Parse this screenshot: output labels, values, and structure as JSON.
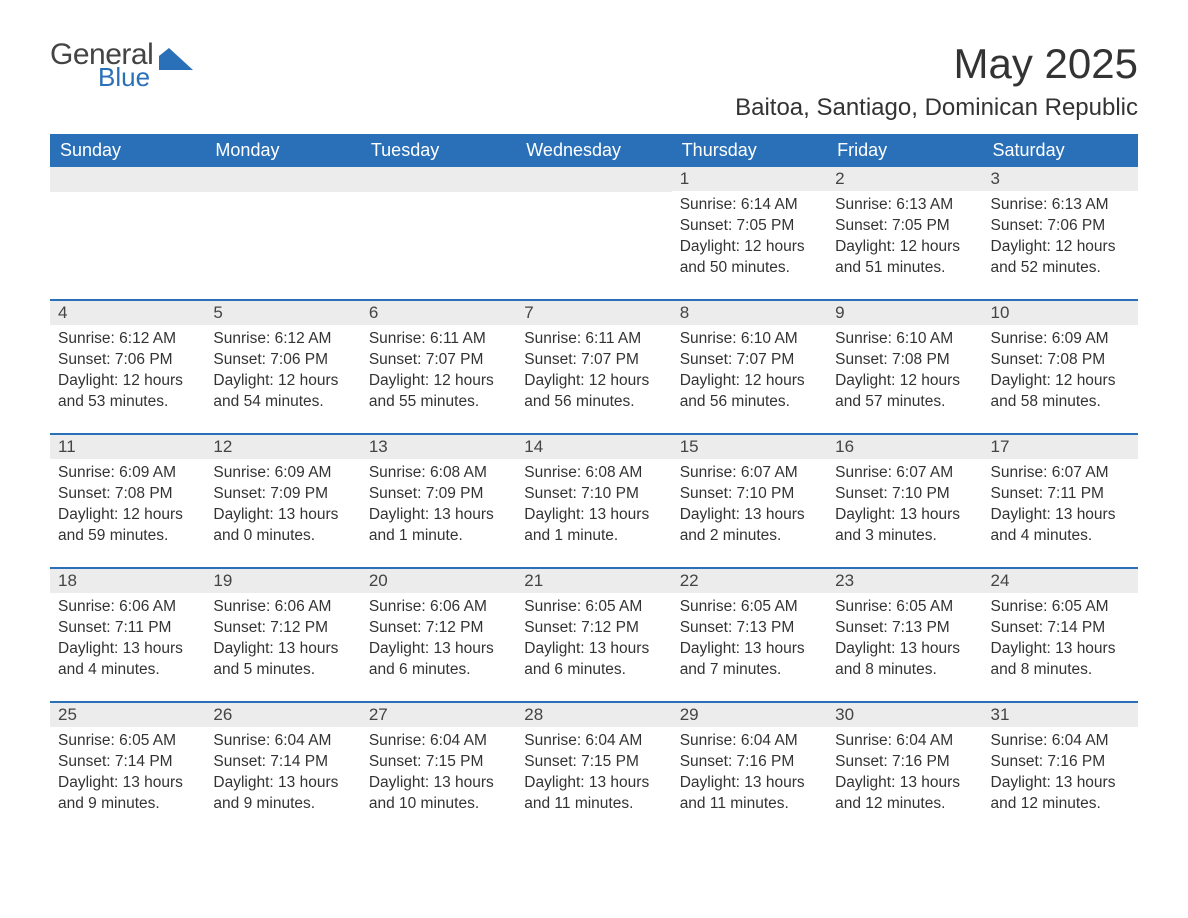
{
  "logo": {
    "general": "General",
    "blue": "Blue"
  },
  "title": "May 2025",
  "location": "Baitoa, Santiago, Dominican Republic",
  "colors": {
    "accent": "#2a70b8",
    "header_text": "#ffffff",
    "daybar_bg": "#ececec",
    "text": "#333333",
    "bg": "#ffffff"
  },
  "weekdays": [
    "Sunday",
    "Monday",
    "Tuesday",
    "Wednesday",
    "Thursday",
    "Friday",
    "Saturday"
  ],
  "weeks": [
    [
      {
        "day": "",
        "sunrise": "",
        "sunset": "",
        "daylight": ""
      },
      {
        "day": "",
        "sunrise": "",
        "sunset": "",
        "daylight": ""
      },
      {
        "day": "",
        "sunrise": "",
        "sunset": "",
        "daylight": ""
      },
      {
        "day": "",
        "sunrise": "",
        "sunset": "",
        "daylight": ""
      },
      {
        "day": "1",
        "sunrise": "Sunrise: 6:14 AM",
        "sunset": "Sunset: 7:05 PM",
        "daylight": "Daylight: 12 hours and 50 minutes."
      },
      {
        "day": "2",
        "sunrise": "Sunrise: 6:13 AM",
        "sunset": "Sunset: 7:05 PM",
        "daylight": "Daylight: 12 hours and 51 minutes."
      },
      {
        "day": "3",
        "sunrise": "Sunrise: 6:13 AM",
        "sunset": "Sunset: 7:06 PM",
        "daylight": "Daylight: 12 hours and 52 minutes."
      }
    ],
    [
      {
        "day": "4",
        "sunrise": "Sunrise: 6:12 AM",
        "sunset": "Sunset: 7:06 PM",
        "daylight": "Daylight: 12 hours and 53 minutes."
      },
      {
        "day": "5",
        "sunrise": "Sunrise: 6:12 AM",
        "sunset": "Sunset: 7:06 PM",
        "daylight": "Daylight: 12 hours and 54 minutes."
      },
      {
        "day": "6",
        "sunrise": "Sunrise: 6:11 AM",
        "sunset": "Sunset: 7:07 PM",
        "daylight": "Daylight: 12 hours and 55 minutes."
      },
      {
        "day": "7",
        "sunrise": "Sunrise: 6:11 AM",
        "sunset": "Sunset: 7:07 PM",
        "daylight": "Daylight: 12 hours and 56 minutes."
      },
      {
        "day": "8",
        "sunrise": "Sunrise: 6:10 AM",
        "sunset": "Sunset: 7:07 PM",
        "daylight": "Daylight: 12 hours and 56 minutes."
      },
      {
        "day": "9",
        "sunrise": "Sunrise: 6:10 AM",
        "sunset": "Sunset: 7:08 PM",
        "daylight": "Daylight: 12 hours and 57 minutes."
      },
      {
        "day": "10",
        "sunrise": "Sunrise: 6:09 AM",
        "sunset": "Sunset: 7:08 PM",
        "daylight": "Daylight: 12 hours and 58 minutes."
      }
    ],
    [
      {
        "day": "11",
        "sunrise": "Sunrise: 6:09 AM",
        "sunset": "Sunset: 7:08 PM",
        "daylight": "Daylight: 12 hours and 59 minutes."
      },
      {
        "day": "12",
        "sunrise": "Sunrise: 6:09 AM",
        "sunset": "Sunset: 7:09 PM",
        "daylight": "Daylight: 13 hours and 0 minutes."
      },
      {
        "day": "13",
        "sunrise": "Sunrise: 6:08 AM",
        "sunset": "Sunset: 7:09 PM",
        "daylight": "Daylight: 13 hours and 1 minute."
      },
      {
        "day": "14",
        "sunrise": "Sunrise: 6:08 AM",
        "sunset": "Sunset: 7:10 PM",
        "daylight": "Daylight: 13 hours and 1 minute."
      },
      {
        "day": "15",
        "sunrise": "Sunrise: 6:07 AM",
        "sunset": "Sunset: 7:10 PM",
        "daylight": "Daylight: 13 hours and 2 minutes."
      },
      {
        "day": "16",
        "sunrise": "Sunrise: 6:07 AM",
        "sunset": "Sunset: 7:10 PM",
        "daylight": "Daylight: 13 hours and 3 minutes."
      },
      {
        "day": "17",
        "sunrise": "Sunrise: 6:07 AM",
        "sunset": "Sunset: 7:11 PM",
        "daylight": "Daylight: 13 hours and 4 minutes."
      }
    ],
    [
      {
        "day": "18",
        "sunrise": "Sunrise: 6:06 AM",
        "sunset": "Sunset: 7:11 PM",
        "daylight": "Daylight: 13 hours and 4 minutes."
      },
      {
        "day": "19",
        "sunrise": "Sunrise: 6:06 AM",
        "sunset": "Sunset: 7:12 PM",
        "daylight": "Daylight: 13 hours and 5 minutes."
      },
      {
        "day": "20",
        "sunrise": "Sunrise: 6:06 AM",
        "sunset": "Sunset: 7:12 PM",
        "daylight": "Daylight: 13 hours and 6 minutes."
      },
      {
        "day": "21",
        "sunrise": "Sunrise: 6:05 AM",
        "sunset": "Sunset: 7:12 PM",
        "daylight": "Daylight: 13 hours and 6 minutes."
      },
      {
        "day": "22",
        "sunrise": "Sunrise: 6:05 AM",
        "sunset": "Sunset: 7:13 PM",
        "daylight": "Daylight: 13 hours and 7 minutes."
      },
      {
        "day": "23",
        "sunrise": "Sunrise: 6:05 AM",
        "sunset": "Sunset: 7:13 PM",
        "daylight": "Daylight: 13 hours and 8 minutes."
      },
      {
        "day": "24",
        "sunrise": "Sunrise: 6:05 AM",
        "sunset": "Sunset: 7:14 PM",
        "daylight": "Daylight: 13 hours and 8 minutes."
      }
    ],
    [
      {
        "day": "25",
        "sunrise": "Sunrise: 6:05 AM",
        "sunset": "Sunset: 7:14 PM",
        "daylight": "Daylight: 13 hours and 9 minutes."
      },
      {
        "day": "26",
        "sunrise": "Sunrise: 6:04 AM",
        "sunset": "Sunset: 7:14 PM",
        "daylight": "Daylight: 13 hours and 9 minutes."
      },
      {
        "day": "27",
        "sunrise": "Sunrise: 6:04 AM",
        "sunset": "Sunset: 7:15 PM",
        "daylight": "Daylight: 13 hours and 10 minutes."
      },
      {
        "day": "28",
        "sunrise": "Sunrise: 6:04 AM",
        "sunset": "Sunset: 7:15 PM",
        "daylight": "Daylight: 13 hours and 11 minutes."
      },
      {
        "day": "29",
        "sunrise": "Sunrise: 6:04 AM",
        "sunset": "Sunset: 7:16 PM",
        "daylight": "Daylight: 13 hours and 11 minutes."
      },
      {
        "day": "30",
        "sunrise": "Sunrise: 6:04 AM",
        "sunset": "Sunset: 7:16 PM",
        "daylight": "Daylight: 13 hours and 12 minutes."
      },
      {
        "day": "31",
        "sunrise": "Sunrise: 6:04 AM",
        "sunset": "Sunset: 7:16 PM",
        "daylight": "Daylight: 13 hours and 12 minutes."
      }
    ]
  ]
}
